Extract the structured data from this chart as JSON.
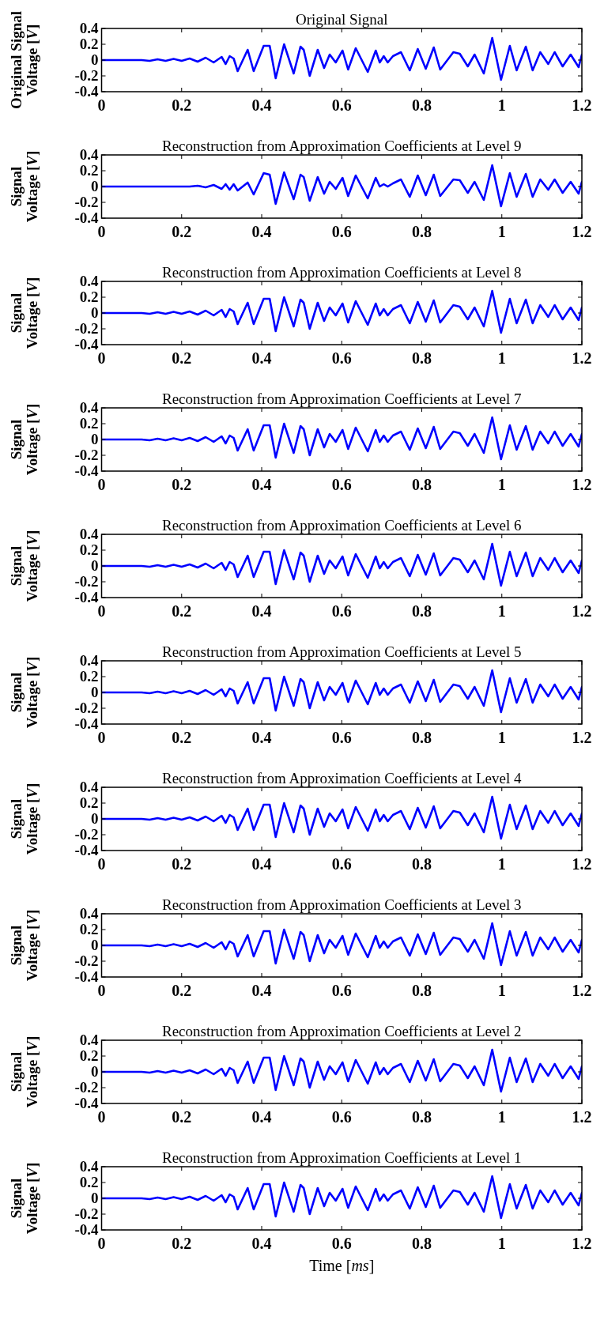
{
  "chart_data": [
    {
      "type": "line",
      "title": "Original Signal",
      "ylabel": "Original Signal Voltage [V]",
      "x": [
        0,
        0.1,
        0.12,
        0.14,
        0.16,
        0.18,
        0.2,
        0.22,
        0.24,
        0.26,
        0.28,
        0.3,
        0.31,
        0.32,
        0.33,
        0.34,
        0.365,
        0.38,
        0.405,
        0.42,
        0.435,
        0.456,
        0.48,
        0.497,
        0.505,
        0.52,
        0.54,
        0.556,
        0.57,
        0.585,
        0.602,
        0.616,
        0.635,
        0.665,
        0.685,
        0.695,
        0.705,
        0.715,
        0.728,
        0.748,
        0.77,
        0.79,
        0.81,
        0.83,
        0.846,
        0.879,
        0.895,
        0.915,
        0.932,
        0.955,
        0.976,
        0.998,
        1.02,
        1.037,
        1.06,
        1.077,
        1.096,
        1.116,
        1.132,
        1.152,
        1.172,
        1.192,
        1.2
      ],
      "series": [
        {
          "color": "#0000ff",
          "values": [
            0,
            0,
            -0.01,
            0.01,
            -0.01,
            0.015,
            -0.01,
            0.02,
            -0.02,
            0.03,
            -0.03,
            0.04,
            -0.05,
            0.05,
            0.02,
            -0.14,
            0.13,
            -0.14,
            0.18,
            0.18,
            -0.23,
            0.2,
            -0.17,
            0.17,
            0.13,
            -0.2,
            0.13,
            -0.1,
            0.07,
            -0.03,
            0.12,
            -0.12,
            0.15,
            -0.15,
            0.12,
            -0.03,
            0.05,
            -0.03,
            0.05,
            0.1,
            -0.13,
            0.14,
            -0.11,
            0.16,
            -0.12,
            0.1,
            0.08,
            -0.08,
            0.07,
            -0.17,
            0.28,
            -0.25,
            0.18,
            -0.13,
            0.17,
            -0.13,
            0.1,
            -0.05,
            0.1,
            -0.08,
            0.07,
            -0.09,
            0.07
          ]
        }
      ],
      "xlim": [
        0,
        1.2
      ],
      "ylim": [
        -0.4,
        0.4
      ],
      "xticks": [
        0,
        0.2,
        0.4,
        0.6,
        0.8,
        1,
        1.2
      ],
      "yticks": [
        -0.4,
        -0.2,
        0,
        0.2,
        0.4
      ]
    },
    {
      "type": "line",
      "title": "Reconstruction from Approximation Coefficients at Level 9",
      "ylabel": "Signal Voltage [V]",
      "x": [
        0,
        0.1,
        0.12,
        0.14,
        0.16,
        0.18,
        0.2,
        0.22,
        0.24,
        0.26,
        0.28,
        0.3,
        0.31,
        0.32,
        0.33,
        0.34,
        0.365,
        0.38,
        0.405,
        0.42,
        0.435,
        0.456,
        0.48,
        0.497,
        0.505,
        0.52,
        0.54,
        0.556,
        0.57,
        0.585,
        0.602,
        0.616,
        0.635,
        0.665,
        0.685,
        0.695,
        0.705,
        0.715,
        0.728,
        0.748,
        0.77,
        0.79,
        0.81,
        0.83,
        0.846,
        0.879,
        0.895,
        0.915,
        0.932,
        0.955,
        0.976,
        0.998,
        1.02,
        1.037,
        1.06,
        1.077,
        1.096,
        1.116,
        1.132,
        1.152,
        1.172,
        1.192,
        1.2
      ],
      "series": [
        {
          "color": "#0000ff",
          "values": [
            0,
            0,
            0,
            0,
            0,
            0,
            0,
            0,
            0.01,
            -0.01,
            0.02,
            -0.03,
            0.03,
            -0.04,
            0.03,
            -0.05,
            0.05,
            -0.1,
            0.17,
            0.15,
            -0.22,
            0.18,
            -0.16,
            0.15,
            0.12,
            -0.18,
            0.12,
            -0.09,
            0.06,
            -0.03,
            0.11,
            -0.12,
            0.14,
            -0.15,
            0.11,
            0,
            0.03,
            0,
            0.04,
            0.09,
            -0.13,
            0.14,
            -0.11,
            0.15,
            -0.12,
            0.09,
            0.08,
            -0.08,
            0.06,
            -0.17,
            0.27,
            -0.25,
            0.17,
            -0.13,
            0.16,
            -0.13,
            0.09,
            -0.04,
            0.09,
            -0.08,
            0.06,
            -0.09,
            0.06
          ]
        }
      ],
      "xlim": [
        0,
        1.2
      ],
      "ylim": [
        -0.4,
        0.4
      ],
      "xticks": [
        0,
        0.2,
        0.4,
        0.6,
        0.8,
        1,
        1.2
      ],
      "yticks": [
        -0.4,
        -0.2,
        0,
        0.2,
        0.4
      ]
    },
    {
      "type": "line",
      "title": "Reconstruction from Approximation Coefficients at Level 8",
      "ylabel": "Signal Voltage [V]",
      "x": [
        0,
        0.1,
        0.12,
        0.14,
        0.16,
        0.18,
        0.2,
        0.22,
        0.24,
        0.26,
        0.28,
        0.3,
        0.31,
        0.32,
        0.33,
        0.34,
        0.365,
        0.38,
        0.405,
        0.42,
        0.435,
        0.456,
        0.48,
        0.497,
        0.505,
        0.52,
        0.54,
        0.556,
        0.57,
        0.585,
        0.602,
        0.616,
        0.635,
        0.665,
        0.685,
        0.695,
        0.705,
        0.715,
        0.728,
        0.748,
        0.77,
        0.79,
        0.81,
        0.83,
        0.846,
        0.879,
        0.895,
        0.915,
        0.932,
        0.955,
        0.976,
        0.998,
        1.02,
        1.037,
        1.06,
        1.077,
        1.096,
        1.116,
        1.132,
        1.152,
        1.172,
        1.192,
        1.2
      ],
      "series": [
        {
          "color": "#0000ff",
          "values": [
            0,
            0,
            -0.01,
            0.01,
            -0.01,
            0.015,
            -0.01,
            0.02,
            -0.02,
            0.03,
            -0.03,
            0.04,
            -0.05,
            0.05,
            0.02,
            -0.14,
            0.13,
            -0.14,
            0.18,
            0.18,
            -0.23,
            0.2,
            -0.17,
            0.17,
            0.13,
            -0.2,
            0.13,
            -0.1,
            0.07,
            -0.03,
            0.12,
            -0.12,
            0.15,
            -0.15,
            0.12,
            -0.03,
            0.05,
            -0.03,
            0.05,
            0.1,
            -0.13,
            0.14,
            -0.11,
            0.16,
            -0.12,
            0.1,
            0.08,
            -0.08,
            0.07,
            -0.17,
            0.28,
            -0.25,
            0.18,
            -0.13,
            0.17,
            -0.13,
            0.1,
            -0.05,
            0.1,
            -0.08,
            0.07,
            -0.09,
            0.07
          ]
        }
      ],
      "xlim": [
        0,
        1.2
      ],
      "ylim": [
        -0.4,
        0.4
      ],
      "xticks": [
        0,
        0.2,
        0.4,
        0.6,
        0.8,
        1,
        1.2
      ],
      "yticks": [
        -0.4,
        -0.2,
        0,
        0.2,
        0.4
      ]
    },
    {
      "type": "line",
      "title": "Reconstruction from Approximation Coefficients at Level 7",
      "ylabel": "Signal Voltage [V]",
      "x": [
        0,
        0.1,
        0.12,
        0.14,
        0.16,
        0.18,
        0.2,
        0.22,
        0.24,
        0.26,
        0.28,
        0.3,
        0.31,
        0.32,
        0.33,
        0.34,
        0.365,
        0.38,
        0.405,
        0.42,
        0.435,
        0.456,
        0.48,
        0.497,
        0.505,
        0.52,
        0.54,
        0.556,
        0.57,
        0.585,
        0.602,
        0.616,
        0.635,
        0.665,
        0.685,
        0.695,
        0.705,
        0.715,
        0.728,
        0.748,
        0.77,
        0.79,
        0.81,
        0.83,
        0.846,
        0.879,
        0.895,
        0.915,
        0.932,
        0.955,
        0.976,
        0.998,
        1.02,
        1.037,
        1.06,
        1.077,
        1.096,
        1.116,
        1.132,
        1.152,
        1.172,
        1.192,
        1.2
      ],
      "series": [
        {
          "color": "#0000ff",
          "values": [
            0,
            0,
            -0.01,
            0.01,
            -0.01,
            0.015,
            -0.01,
            0.02,
            -0.02,
            0.03,
            -0.03,
            0.04,
            -0.05,
            0.05,
            0.02,
            -0.14,
            0.13,
            -0.14,
            0.18,
            0.18,
            -0.23,
            0.2,
            -0.17,
            0.17,
            0.13,
            -0.2,
            0.13,
            -0.1,
            0.07,
            -0.03,
            0.12,
            -0.12,
            0.15,
            -0.15,
            0.12,
            -0.03,
            0.05,
            -0.03,
            0.05,
            0.1,
            -0.13,
            0.14,
            -0.11,
            0.16,
            -0.12,
            0.1,
            0.08,
            -0.08,
            0.07,
            -0.17,
            0.28,
            -0.25,
            0.18,
            -0.13,
            0.17,
            -0.13,
            0.1,
            -0.05,
            0.1,
            -0.08,
            0.07,
            -0.09,
            0.07
          ]
        }
      ],
      "xlim": [
        0,
        1.2
      ],
      "ylim": [
        -0.4,
        0.4
      ],
      "xticks": [
        0,
        0.2,
        0.4,
        0.6,
        0.8,
        1,
        1.2
      ],
      "yticks": [
        -0.4,
        -0.2,
        0,
        0.2,
        0.4
      ]
    },
    {
      "type": "line",
      "title": "Reconstruction from Approximation Coefficients at Level 6",
      "ylabel": "Signal Voltage [V]",
      "x": [
        0,
        0.1,
        0.12,
        0.14,
        0.16,
        0.18,
        0.2,
        0.22,
        0.24,
        0.26,
        0.28,
        0.3,
        0.31,
        0.32,
        0.33,
        0.34,
        0.365,
        0.38,
        0.405,
        0.42,
        0.435,
        0.456,
        0.48,
        0.497,
        0.505,
        0.52,
        0.54,
        0.556,
        0.57,
        0.585,
        0.602,
        0.616,
        0.635,
        0.665,
        0.685,
        0.695,
        0.705,
        0.715,
        0.728,
        0.748,
        0.77,
        0.79,
        0.81,
        0.83,
        0.846,
        0.879,
        0.895,
        0.915,
        0.932,
        0.955,
        0.976,
        0.998,
        1.02,
        1.037,
        1.06,
        1.077,
        1.096,
        1.116,
        1.132,
        1.152,
        1.172,
        1.192,
        1.2
      ],
      "series": [
        {
          "color": "#0000ff",
          "values": [
            0,
            0,
            -0.01,
            0.01,
            -0.01,
            0.015,
            -0.01,
            0.02,
            -0.02,
            0.03,
            -0.03,
            0.04,
            -0.05,
            0.05,
            0.02,
            -0.14,
            0.13,
            -0.14,
            0.18,
            0.18,
            -0.23,
            0.2,
            -0.17,
            0.17,
            0.13,
            -0.2,
            0.13,
            -0.1,
            0.07,
            -0.03,
            0.12,
            -0.12,
            0.15,
            -0.15,
            0.12,
            -0.03,
            0.05,
            -0.03,
            0.05,
            0.1,
            -0.13,
            0.14,
            -0.11,
            0.16,
            -0.12,
            0.1,
            0.08,
            -0.08,
            0.07,
            -0.17,
            0.28,
            -0.25,
            0.18,
            -0.13,
            0.17,
            -0.13,
            0.1,
            -0.05,
            0.1,
            -0.08,
            0.07,
            -0.09,
            0.07
          ]
        }
      ],
      "xlim": [
        0,
        1.2
      ],
      "ylim": [
        -0.4,
        0.4
      ],
      "xticks": [
        0,
        0.2,
        0.4,
        0.6,
        0.8,
        1,
        1.2
      ],
      "yticks": [
        -0.4,
        -0.2,
        0,
        0.2,
        0.4
      ]
    },
    {
      "type": "line",
      "title": "Reconstruction from Approximation Coefficients at Level 5",
      "ylabel": "Signal Voltage [V]",
      "x": [
        0,
        0.1,
        0.12,
        0.14,
        0.16,
        0.18,
        0.2,
        0.22,
        0.24,
        0.26,
        0.28,
        0.3,
        0.31,
        0.32,
        0.33,
        0.34,
        0.365,
        0.38,
        0.405,
        0.42,
        0.435,
        0.456,
        0.48,
        0.497,
        0.505,
        0.52,
        0.54,
        0.556,
        0.57,
        0.585,
        0.602,
        0.616,
        0.635,
        0.665,
        0.685,
        0.695,
        0.705,
        0.715,
        0.728,
        0.748,
        0.77,
        0.79,
        0.81,
        0.83,
        0.846,
        0.879,
        0.895,
        0.915,
        0.932,
        0.955,
        0.976,
        0.998,
        1.02,
        1.037,
        1.06,
        1.077,
        1.096,
        1.116,
        1.132,
        1.152,
        1.172,
        1.192,
        1.2
      ],
      "series": [
        {
          "color": "#0000ff",
          "values": [
            0,
            0,
            -0.01,
            0.01,
            -0.01,
            0.015,
            -0.01,
            0.02,
            -0.02,
            0.03,
            -0.03,
            0.04,
            -0.05,
            0.05,
            0.02,
            -0.14,
            0.13,
            -0.14,
            0.18,
            0.18,
            -0.23,
            0.2,
            -0.17,
            0.17,
            0.13,
            -0.2,
            0.13,
            -0.1,
            0.07,
            -0.03,
            0.12,
            -0.12,
            0.15,
            -0.15,
            0.12,
            -0.03,
            0.05,
            -0.03,
            0.05,
            0.1,
            -0.13,
            0.14,
            -0.11,
            0.16,
            -0.12,
            0.1,
            0.08,
            -0.08,
            0.07,
            -0.17,
            0.28,
            -0.25,
            0.18,
            -0.13,
            0.17,
            -0.13,
            0.1,
            -0.05,
            0.1,
            -0.08,
            0.07,
            -0.09,
            0.07
          ]
        }
      ],
      "xlim": [
        0,
        1.2
      ],
      "ylim": [
        -0.4,
        0.4
      ],
      "xticks": [
        0,
        0.2,
        0.4,
        0.6,
        0.8,
        1,
        1.2
      ],
      "yticks": [
        -0.4,
        -0.2,
        0,
        0.2,
        0.4
      ]
    },
    {
      "type": "line",
      "title": "Reconstruction from Approximation Coefficients at Level 4",
      "ylabel": "Signal Voltage [V]",
      "x": [
        0,
        0.1,
        0.12,
        0.14,
        0.16,
        0.18,
        0.2,
        0.22,
        0.24,
        0.26,
        0.28,
        0.3,
        0.31,
        0.32,
        0.33,
        0.34,
        0.365,
        0.38,
        0.405,
        0.42,
        0.435,
        0.456,
        0.48,
        0.497,
        0.505,
        0.52,
        0.54,
        0.556,
        0.57,
        0.585,
        0.602,
        0.616,
        0.635,
        0.665,
        0.685,
        0.695,
        0.705,
        0.715,
        0.728,
        0.748,
        0.77,
        0.79,
        0.81,
        0.83,
        0.846,
        0.879,
        0.895,
        0.915,
        0.932,
        0.955,
        0.976,
        0.998,
        1.02,
        1.037,
        1.06,
        1.077,
        1.096,
        1.116,
        1.132,
        1.152,
        1.172,
        1.192,
        1.2
      ],
      "series": [
        {
          "color": "#0000ff",
          "values": [
            0,
            0,
            -0.01,
            0.01,
            -0.01,
            0.015,
            -0.01,
            0.02,
            -0.02,
            0.03,
            -0.03,
            0.04,
            -0.05,
            0.05,
            0.02,
            -0.14,
            0.13,
            -0.14,
            0.18,
            0.18,
            -0.23,
            0.2,
            -0.17,
            0.17,
            0.13,
            -0.2,
            0.13,
            -0.1,
            0.07,
            -0.03,
            0.12,
            -0.12,
            0.15,
            -0.15,
            0.12,
            -0.03,
            0.05,
            -0.03,
            0.05,
            0.1,
            -0.13,
            0.14,
            -0.11,
            0.16,
            -0.12,
            0.1,
            0.08,
            -0.08,
            0.07,
            -0.17,
            0.28,
            -0.25,
            0.18,
            -0.13,
            0.17,
            -0.13,
            0.1,
            -0.05,
            0.1,
            -0.08,
            0.07,
            -0.09,
            0.07
          ]
        }
      ],
      "xlim": [
        0,
        1.2
      ],
      "ylim": [
        -0.4,
        0.4
      ],
      "xticks": [
        0,
        0.2,
        0.4,
        0.6,
        0.8,
        1,
        1.2
      ],
      "yticks": [
        -0.4,
        -0.2,
        0,
        0.2,
        0.4
      ]
    },
    {
      "type": "line",
      "title": "Reconstruction from Approximation Coefficients at Level 3",
      "ylabel": "Signal Voltage [V]",
      "x": [
        0,
        0.1,
        0.12,
        0.14,
        0.16,
        0.18,
        0.2,
        0.22,
        0.24,
        0.26,
        0.28,
        0.3,
        0.31,
        0.32,
        0.33,
        0.34,
        0.365,
        0.38,
        0.405,
        0.42,
        0.435,
        0.456,
        0.48,
        0.497,
        0.505,
        0.52,
        0.54,
        0.556,
        0.57,
        0.585,
        0.602,
        0.616,
        0.635,
        0.665,
        0.685,
        0.695,
        0.705,
        0.715,
        0.728,
        0.748,
        0.77,
        0.79,
        0.81,
        0.83,
        0.846,
        0.879,
        0.895,
        0.915,
        0.932,
        0.955,
        0.976,
        0.998,
        1.02,
        1.037,
        1.06,
        1.077,
        1.096,
        1.116,
        1.132,
        1.152,
        1.172,
        1.192,
        1.2
      ],
      "series": [
        {
          "color": "#0000ff",
          "values": [
            0,
            0,
            -0.01,
            0.01,
            -0.01,
            0.015,
            -0.01,
            0.02,
            -0.02,
            0.03,
            -0.03,
            0.04,
            -0.05,
            0.05,
            0.02,
            -0.14,
            0.13,
            -0.14,
            0.18,
            0.18,
            -0.23,
            0.2,
            -0.17,
            0.17,
            0.13,
            -0.2,
            0.13,
            -0.1,
            0.07,
            -0.03,
            0.12,
            -0.12,
            0.15,
            -0.15,
            0.12,
            -0.03,
            0.05,
            -0.03,
            0.05,
            0.1,
            -0.13,
            0.14,
            -0.11,
            0.16,
            -0.12,
            0.1,
            0.08,
            -0.08,
            0.07,
            -0.17,
            0.28,
            -0.25,
            0.18,
            -0.13,
            0.17,
            -0.13,
            0.1,
            -0.05,
            0.1,
            -0.08,
            0.07,
            -0.09,
            0.07
          ]
        }
      ],
      "xlim": [
        0,
        1.2
      ],
      "ylim": [
        -0.4,
        0.4
      ],
      "xticks": [
        0,
        0.2,
        0.4,
        0.6,
        0.8,
        1,
        1.2
      ],
      "yticks": [
        -0.4,
        -0.2,
        0,
        0.2,
        0.4
      ]
    },
    {
      "type": "line",
      "title": "Reconstruction from Approximation Coefficients at Level 2",
      "ylabel": "Signal Voltage [V]",
      "x": [
        0,
        0.1,
        0.12,
        0.14,
        0.16,
        0.18,
        0.2,
        0.22,
        0.24,
        0.26,
        0.28,
        0.3,
        0.31,
        0.32,
        0.33,
        0.34,
        0.365,
        0.38,
        0.405,
        0.42,
        0.435,
        0.456,
        0.48,
        0.497,
        0.505,
        0.52,
        0.54,
        0.556,
        0.57,
        0.585,
        0.602,
        0.616,
        0.635,
        0.665,
        0.685,
        0.695,
        0.705,
        0.715,
        0.728,
        0.748,
        0.77,
        0.79,
        0.81,
        0.83,
        0.846,
        0.879,
        0.895,
        0.915,
        0.932,
        0.955,
        0.976,
        0.998,
        1.02,
        1.037,
        1.06,
        1.077,
        1.096,
        1.116,
        1.132,
        1.152,
        1.172,
        1.192,
        1.2
      ],
      "series": [
        {
          "color": "#0000ff",
          "values": [
            0,
            0,
            -0.01,
            0.01,
            -0.01,
            0.015,
            -0.01,
            0.02,
            -0.02,
            0.03,
            -0.03,
            0.04,
            -0.05,
            0.05,
            0.02,
            -0.14,
            0.13,
            -0.14,
            0.18,
            0.18,
            -0.23,
            0.2,
            -0.17,
            0.17,
            0.13,
            -0.2,
            0.13,
            -0.1,
            0.07,
            -0.03,
            0.12,
            -0.12,
            0.15,
            -0.15,
            0.12,
            -0.03,
            0.05,
            -0.03,
            0.05,
            0.1,
            -0.13,
            0.14,
            -0.11,
            0.16,
            -0.12,
            0.1,
            0.08,
            -0.08,
            0.07,
            -0.17,
            0.28,
            -0.25,
            0.18,
            -0.13,
            0.17,
            -0.13,
            0.1,
            -0.05,
            0.1,
            -0.08,
            0.07,
            -0.09,
            0.07
          ]
        }
      ],
      "xlim": [
        0,
        1.2
      ],
      "ylim": [
        -0.4,
        0.4
      ],
      "xticks": [
        0,
        0.2,
        0.4,
        0.6,
        0.8,
        1,
        1.2
      ],
      "yticks": [
        -0.4,
        -0.2,
        0,
        0.2,
        0.4
      ]
    },
    {
      "type": "line",
      "title": "Reconstruction from Approximation Coefficients at Level 1",
      "ylabel": "Signal Voltage [V]",
      "xlabel": "Time [ms]",
      "x": [
        0,
        0.1,
        0.12,
        0.14,
        0.16,
        0.18,
        0.2,
        0.22,
        0.24,
        0.26,
        0.28,
        0.3,
        0.31,
        0.32,
        0.33,
        0.34,
        0.365,
        0.38,
        0.405,
        0.42,
        0.435,
        0.456,
        0.48,
        0.497,
        0.505,
        0.52,
        0.54,
        0.556,
        0.57,
        0.585,
        0.602,
        0.616,
        0.635,
        0.665,
        0.685,
        0.695,
        0.705,
        0.715,
        0.728,
        0.748,
        0.77,
        0.79,
        0.81,
        0.83,
        0.846,
        0.879,
        0.895,
        0.915,
        0.932,
        0.955,
        0.976,
        0.998,
        1.02,
        1.037,
        1.06,
        1.077,
        1.096,
        1.116,
        1.132,
        1.152,
        1.172,
        1.192,
        1.2
      ],
      "series": [
        {
          "color": "#0000ff",
          "values": [
            0,
            0,
            -0.01,
            0.01,
            -0.01,
            0.015,
            -0.01,
            0.02,
            -0.02,
            0.03,
            -0.03,
            0.04,
            -0.05,
            0.05,
            0.02,
            -0.14,
            0.13,
            -0.14,
            0.18,
            0.18,
            -0.23,
            0.2,
            -0.17,
            0.17,
            0.13,
            -0.2,
            0.13,
            -0.1,
            0.07,
            -0.03,
            0.12,
            -0.12,
            0.15,
            -0.15,
            0.12,
            -0.03,
            0.05,
            -0.03,
            0.05,
            0.1,
            -0.13,
            0.14,
            -0.11,
            0.16,
            -0.12,
            0.1,
            0.08,
            -0.08,
            0.07,
            -0.17,
            0.28,
            -0.25,
            0.18,
            -0.13,
            0.17,
            -0.13,
            0.1,
            -0.05,
            0.1,
            -0.08,
            0.07,
            -0.09,
            0.07
          ]
        }
      ],
      "xlim": [
        0,
        1.2
      ],
      "ylim": [
        -0.4,
        0.4
      ],
      "xticks": [
        0,
        0.2,
        0.4,
        0.6,
        0.8,
        1,
        1.2
      ],
      "yticks": [
        -0.4,
        -0.2,
        0,
        0.2,
        0.4
      ]
    }
  ]
}
